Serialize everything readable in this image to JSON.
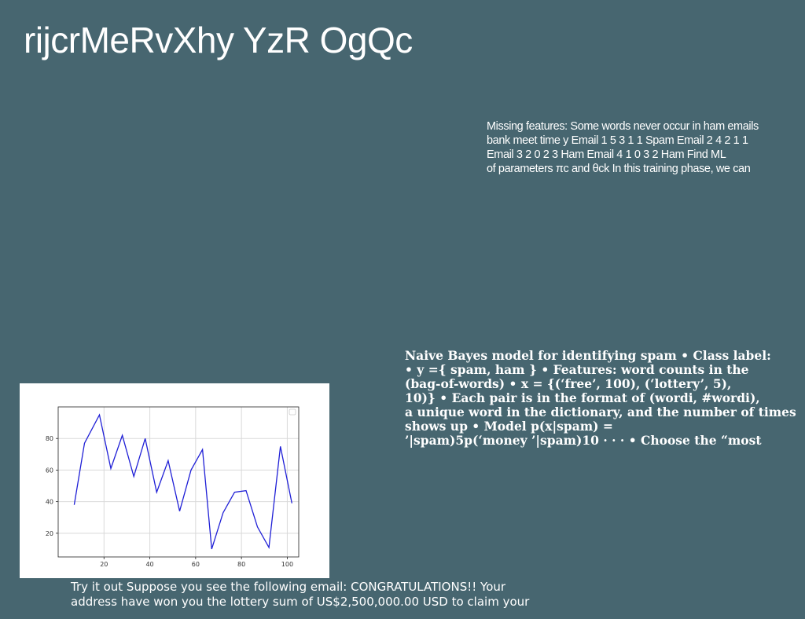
{
  "slide": {
    "title": "rijcrMeRvXhy YzR OgQc"
  },
  "text_block_a": {
    "lines": [
      "Missing features: Some words never occur in ham emails",
      "bank meet time y Email 1 5 3 1 1 Spam Email 2 4 2 1 1",
      "Email 3 2 0 2 3 Ham Email 4 1 0 3 2 Ham Find ML",
      "of parameters πc and θck In this training phase, we can"
    ]
  },
  "text_block_b": {
    "lines": [
      "Naive Bayes model for identifying spam • Class label:",
      "• y ={ spam, ham } • Features: word counts in the",
      "(bag-of-words) • x = {(‘free’, 100), (‘lottery’, 5),",
      "10)} • Each pair is in the format of (wordi, #wordi),",
      "a unique word in the dictionary, and the number of times",
      "shows up • Model p(x|spam) =",
      "’|spam)5p(‘money ’|spam)10 · · · • Choose the “most"
    ]
  },
  "text_block_c": {
    "lines": [
      "Try it out Suppose you see the following email: CONGRATULATIONS!! Your",
      "address have won you the lottery sum of US$2,500,000.00 USD to claim your"
    ]
  },
  "chart_data": {
    "type": "line",
    "x": [
      7,
      11.5,
      18,
      23,
      28,
      33,
      38,
      43,
      48,
      53,
      58,
      63,
      67,
      72,
      77,
      82,
      87,
      92,
      97,
      102
    ],
    "series": [
      {
        "values": [
          38,
          77,
          95,
          61,
          82,
          56,
          80,
          46,
          66,
          34,
          60,
          73,
          10,
          33,
          46,
          47,
          24,
          11,
          75,
          39
        ],
        "color": "#1f1fd6"
      }
    ],
    "xlim": [
      0,
      105
    ],
    "ylim": [
      5,
      100
    ],
    "xticks": [
      20,
      40,
      60,
      80,
      100
    ],
    "yticks": [
      20,
      40,
      60,
      80
    ],
    "grid": true,
    "legend": "top-right"
  }
}
